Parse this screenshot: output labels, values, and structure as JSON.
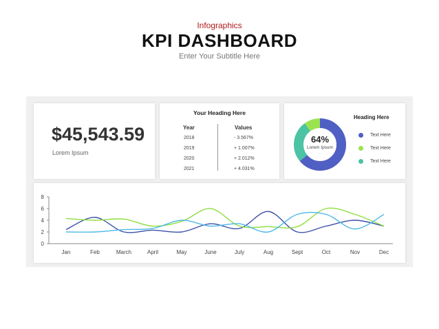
{
  "header": {
    "kicker": "Infographics",
    "title": "KPI DASHBOARD",
    "subtitle": "Enter Your Subtitle Here"
  },
  "kpi": {
    "value": "$45,543.59",
    "label": "Lorem Ipsum"
  },
  "table": {
    "heading": "Your Heading Here",
    "col_year": "Year",
    "col_values": "Values",
    "rows": [
      {
        "year": "2018",
        "value": "- 3.567%"
      },
      {
        "year": "2019",
        "value": "+ 1.007%"
      },
      {
        "year": "2020",
        "value": "+ 2.012%"
      },
      {
        "year": "2021",
        "value": "+ 4.031%"
      }
    ]
  },
  "donut": {
    "heading": "Heading Here",
    "percent_label": "64%",
    "sub_label": "Lorem Ipsum",
    "segments": [
      {
        "value": 64,
        "color": "#4f5fc4"
      },
      {
        "value": 26,
        "color": "#4cc3a3"
      },
      {
        "value": 10,
        "color": "#9ae34f"
      }
    ],
    "legend": [
      {
        "label": "Text Here",
        "color": "#4f5fc4"
      },
      {
        "label": "Text Here",
        "color": "#9ae34f"
      },
      {
        "label": "Text Here",
        "color": "#4cc3a3"
      }
    ]
  },
  "chart_data": {
    "type": "line",
    "categories": [
      "Jan",
      "Feb",
      "March",
      "April",
      "May",
      "June",
      "July",
      "Aug",
      "Sept",
      "Oct",
      "Nov",
      "Dec"
    ],
    "ylim": [
      0,
      8
    ],
    "yticks": [
      "0",
      "2",
      "4",
      "6",
      "8"
    ],
    "grid": false,
    "series": [
      {
        "color": "#3b4fa8",
        "values": [
          2.4,
          4.5,
          2.0,
          2.3,
          2.0,
          3.4,
          2.6,
          5.5,
          2.0,
          3.0,
          4.0,
          3.0
        ]
      },
      {
        "color": "#8ede3f",
        "values": [
          4.3,
          4.0,
          4.2,
          3.0,
          3.8,
          6.0,
          3.0,
          2.9,
          2.9,
          6.0,
          5.0,
          3.0
        ]
      },
      {
        "color": "#4cb8e8",
        "values": [
          2.0,
          2.0,
          2.4,
          2.6,
          4.0,
          3.0,
          3.4,
          2.0,
          5.0,
          5.0,
          2.5,
          5.0
        ]
      }
    ]
  }
}
